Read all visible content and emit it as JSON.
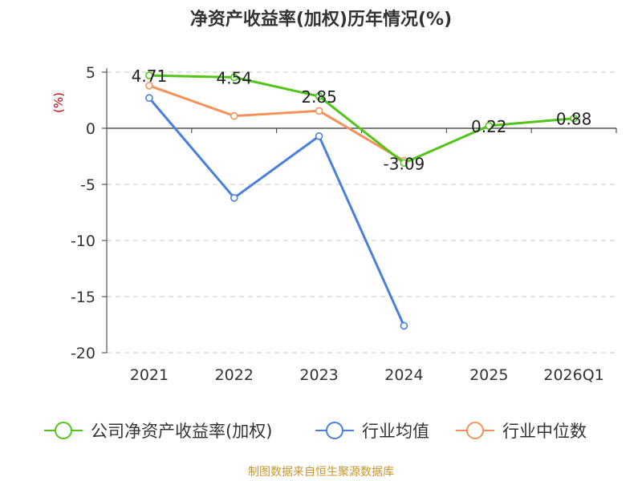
{
  "title": "净资产收益率(加权)历年情况(%)",
  "footer": "制图数据来自恒生聚源数据库",
  "chart_data": {
    "type": "line",
    "ylabel": "(%)",
    "categories": [
      "2021",
      "2022",
      "2023",
      "2024",
      "2025",
      "2026Q1"
    ],
    "ylim": [
      -20,
      5
    ],
    "yticks": [
      5,
      0,
      -5,
      -10,
      -15,
      -20
    ],
    "grid": true,
    "legend_position": "bottom",
    "series": [
      {
        "name": "公司净资产收益率(加权)",
        "color": "#52c41a",
        "values": [
          4.71,
          4.54,
          2.85,
          -3.09,
          0.22,
          0.88
        ],
        "labels": [
          "4.71",
          "4.54",
          "2.85",
          "-3.09",
          "0.22",
          "0.88"
        ]
      },
      {
        "name": "行业均值",
        "color": "#4a7fdb",
        "values": [
          2.7,
          -6.2,
          -0.7,
          -17.6,
          null,
          null
        ]
      },
      {
        "name": "行业中位数",
        "color": "#f5925a",
        "values": [
          3.8,
          1.1,
          1.55,
          -2.9,
          null,
          null
        ]
      }
    ]
  }
}
